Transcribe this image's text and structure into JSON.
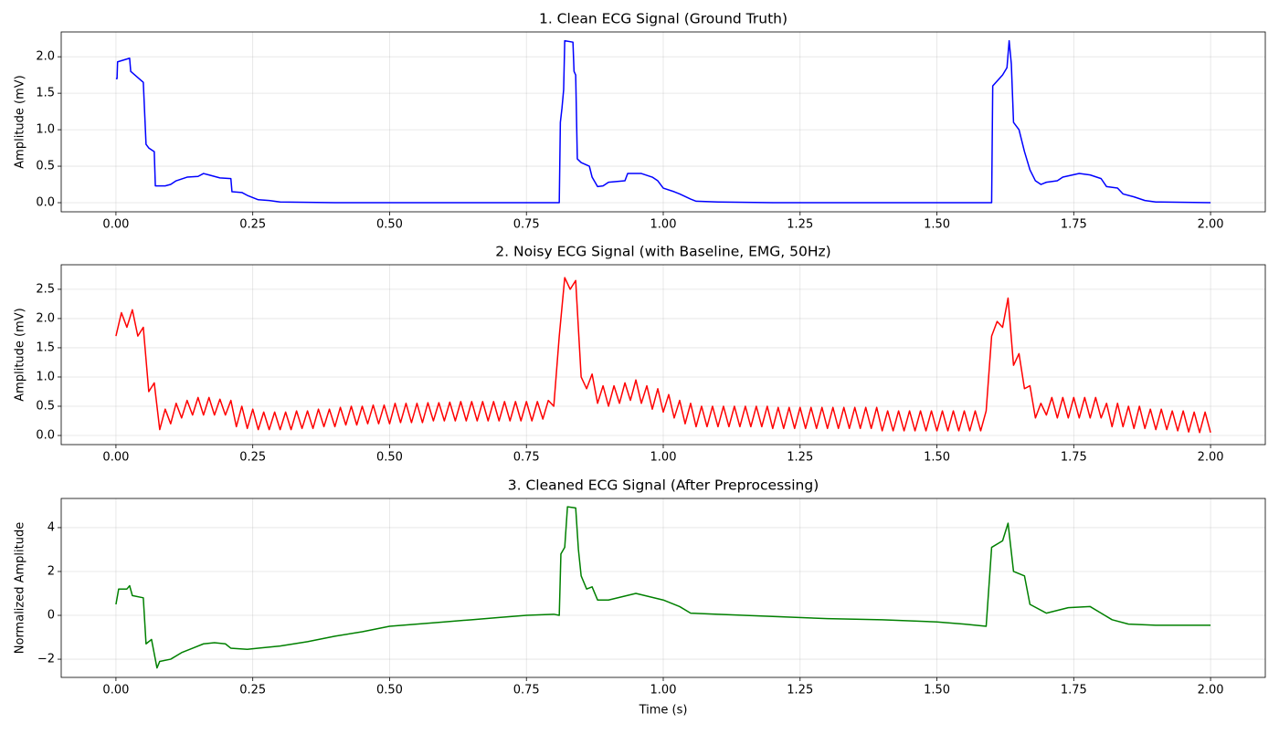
{
  "chart_data": [
    {
      "type": "line",
      "title": "1. Clean ECG Signal (Ground Truth)",
      "ylabel": "Amplitude (mV)",
      "color": "#0000ff",
      "grid": true,
      "xlim": [
        -0.1,
        2.1
      ],
      "ylim": [
        -0.125,
        2.34
      ],
      "xticks": [
        {
          "value": 0,
          "label": "0.00"
        },
        {
          "value": 0.25,
          "label": "0.25"
        },
        {
          "value": 0.5,
          "label": "0.50"
        },
        {
          "value": 0.75,
          "label": "0.75"
        },
        {
          "value": 1,
          "label": "1.00"
        },
        {
          "value": 1.25,
          "label": "1.25"
        },
        {
          "value": 1.5,
          "label": "1.50"
        },
        {
          "value": 1.75,
          "label": "1.75"
        },
        {
          "value": 2,
          "label": "2.00"
        }
      ],
      "yticks": [
        {
          "value": 0,
          "label": "0.0"
        },
        0.5,
        {
          "value": 1,
          "label": "1.0"
        },
        1.5,
        {
          "value": 2,
          "label": "2.0"
        }
      ],
      "x": [
        0,
        0.002,
        0.003,
        0.025,
        0.027,
        0.05,
        0.055,
        0.06,
        0.07,
        0.072,
        0.09,
        0.1,
        0.11,
        0.13,
        0.15,
        0.16,
        0.17,
        0.19,
        0.21,
        0.212,
        0.23,
        0.24,
        0.26,
        0.28,
        0.3,
        0.4,
        0.81,
        0.812,
        0.815,
        0.818,
        0.82,
        0.835,
        0.837,
        0.84,
        0.843,
        0.85,
        0.865,
        0.87,
        0.88,
        0.89,
        0.9,
        0.93,
        0.935,
        0.96,
        0.98,
        0.99,
        1.0,
        1.02,
        1.03,
        1.05,
        1.06,
        1.1,
        1.2,
        1.6,
        1.602,
        1.62,
        1.628,
        1.632,
        1.636,
        1.64,
        1.65,
        1.66,
        1.67,
        1.68,
        1.69,
        1.7,
        1.72,
        1.73,
        1.76,
        1.78,
        1.8,
        1.81,
        1.83,
        1.84,
        1.86,
        1.88,
        1.9,
        2.0
      ],
      "values": [
        1.7,
        1.7,
        1.93,
        1.98,
        1.8,
        1.65,
        0.8,
        0.75,
        0.7,
        0.23,
        0.23,
        0.25,
        0.3,
        0.35,
        0.36,
        0.4,
        0.38,
        0.34,
        0.33,
        0.15,
        0.14,
        0.1,
        0.04,
        0.03,
        0.01,
        0.0,
        0.0,
        1.1,
        1.3,
        1.55,
        2.22,
        2.2,
        1.8,
        1.75,
        0.6,
        0.55,
        0.5,
        0.35,
        0.22,
        0.23,
        0.28,
        0.3,
        0.4,
        0.4,
        0.35,
        0.3,
        0.2,
        0.15,
        0.12,
        0.05,
        0.02,
        0.01,
        0.0,
        0.0,
        1.6,
        1.75,
        1.85,
        2.22,
        1.9,
        1.1,
        1.0,
        0.7,
        0.45,
        0.3,
        0.25,
        0.28,
        0.3,
        0.35,
        0.4,
        0.38,
        0.33,
        0.22,
        0.2,
        0.12,
        0.08,
        0.03,
        0.01,
        0.0
      ]
    },
    {
      "type": "line",
      "title": "2. Noisy ECG Signal (with Baseline, EMG, 50Hz)",
      "ylabel": "Amplitude (mV)",
      "color": "#ff0000",
      "grid": true,
      "xlim": [
        -0.1,
        2.1
      ],
      "ylim": [
        -0.156,
        2.92
      ],
      "xticks": [
        {
          "value": 0,
          "label": "0.00"
        },
        {
          "value": 0.25,
          "label": "0.25"
        },
        {
          "value": 0.5,
          "label": "0.50"
        },
        {
          "value": 0.75,
          "label": "0.75"
        },
        {
          "value": 1,
          "label": "1.00"
        },
        {
          "value": 1.25,
          "label": "1.25"
        },
        {
          "value": 1.5,
          "label": "1.50"
        },
        {
          "value": 1.75,
          "label": "1.75"
        },
        {
          "value": 2,
          "label": "2.00"
        }
      ],
      "yticks": [
        {
          "value": 0,
          "label": "0.0"
        },
        0.5,
        {
          "value": 1,
          "label": "1.0"
        },
        1.5,
        {
          "value": 2,
          "label": "2.0"
        },
        2.5
      ],
      "x": [
        0,
        0.01,
        0.02,
        0.03,
        0.04,
        0.05,
        0.06,
        0.07,
        0.08,
        0.09,
        0.1,
        0.11,
        0.12,
        0.13,
        0.14,
        0.15,
        0.16,
        0.17,
        0.18,
        0.19,
        0.2,
        0.21,
        0.22,
        0.23,
        0.24,
        0.25,
        0.26,
        0.27,
        0.28,
        0.29,
        0.3,
        0.31,
        0.32,
        0.33,
        0.34,
        0.35,
        0.36,
        0.37,
        0.38,
        0.39,
        0.4,
        0.41,
        0.42,
        0.43,
        0.44,
        0.45,
        0.46,
        0.47,
        0.48,
        0.49,
        0.5,
        0.51,
        0.52,
        0.53,
        0.54,
        0.55,
        0.56,
        0.57,
        0.58,
        0.59,
        0.6,
        0.61,
        0.62,
        0.63,
        0.64,
        0.65,
        0.66,
        0.67,
        0.68,
        0.69,
        0.7,
        0.71,
        0.72,
        0.73,
        0.74,
        0.75,
        0.76,
        0.77,
        0.78,
        0.79,
        0.8,
        0.81,
        0.82,
        0.83,
        0.84,
        0.85,
        0.86,
        0.87,
        0.88,
        0.89,
        0.9,
        0.91,
        0.92,
        0.93,
        0.94,
        0.95,
        0.96,
        0.97,
        0.98,
        0.99,
        1.0,
        1.01,
        1.02,
        1.03,
        1.04,
        1.05,
        1.06,
        1.07,
        1.08,
        1.09,
        1.1,
        1.11,
        1.12,
        1.13,
        1.14,
        1.15,
        1.16,
        1.17,
        1.18,
        1.19,
        1.2,
        1.21,
        1.22,
        1.23,
        1.24,
        1.25,
        1.26,
        1.27,
        1.28,
        1.29,
        1.3,
        1.31,
        1.32,
        1.33,
        1.34,
        1.35,
        1.36,
        1.37,
        1.38,
        1.39,
        1.4,
        1.41,
        1.42,
        1.43,
        1.44,
        1.45,
        1.46,
        1.47,
        1.48,
        1.49,
        1.5,
        1.51,
        1.52,
        1.53,
        1.54,
        1.55,
        1.56,
        1.57,
        1.58,
        1.59,
        1.6,
        1.61,
        1.62,
        1.63,
        1.64,
        1.65,
        1.66,
        1.67,
        1.68,
        1.69,
        1.7,
        1.71,
        1.72,
        1.73,
        1.74,
        1.75,
        1.76,
        1.77,
        1.78,
        1.79,
        1.8,
        1.81,
        1.82,
        1.83,
        1.84,
        1.85,
        1.86,
        1.87,
        1.88,
        1.89,
        1.9,
        1.91,
        1.92,
        1.93,
        1.94,
        1.95,
        1.96,
        1.97,
        1.98,
        1.99,
        2.0
      ],
      "values": [
        1.7,
        2.1,
        1.85,
        2.15,
        1.7,
        1.85,
        0.75,
        0.9,
        0.1,
        0.45,
        0.2,
        0.55,
        0.3,
        0.6,
        0.35,
        0.65,
        0.35,
        0.65,
        0.35,
        0.62,
        0.35,
        0.6,
        0.15,
        0.5,
        0.12,
        0.45,
        0.1,
        0.4,
        0.1,
        0.4,
        0.1,
        0.4,
        0.1,
        0.42,
        0.12,
        0.42,
        0.12,
        0.45,
        0.15,
        0.45,
        0.15,
        0.48,
        0.18,
        0.5,
        0.18,
        0.5,
        0.2,
        0.52,
        0.2,
        0.52,
        0.2,
        0.55,
        0.22,
        0.55,
        0.22,
        0.55,
        0.22,
        0.56,
        0.25,
        0.56,
        0.25,
        0.57,
        0.25,
        0.58,
        0.25,
        0.58,
        0.25,
        0.58,
        0.25,
        0.58,
        0.25,
        0.58,
        0.25,
        0.58,
        0.25,
        0.58,
        0.25,
        0.58,
        0.28,
        0.6,
        0.5,
        1.7,
        2.7,
        2.5,
        2.65,
        1.0,
        0.8,
        1.05,
        0.55,
        0.85,
        0.5,
        0.85,
        0.55,
        0.9,
        0.6,
        0.95,
        0.55,
        0.85,
        0.45,
        0.8,
        0.4,
        0.7,
        0.3,
        0.6,
        0.2,
        0.55,
        0.15,
        0.5,
        0.15,
        0.5,
        0.15,
        0.5,
        0.15,
        0.5,
        0.15,
        0.5,
        0.15,
        0.5,
        0.15,
        0.5,
        0.12,
        0.48,
        0.12,
        0.48,
        0.12,
        0.48,
        0.12,
        0.48,
        0.12,
        0.48,
        0.12,
        0.48,
        0.12,
        0.48,
        0.12,
        0.48,
        0.12,
        0.48,
        0.12,
        0.48,
        0.08,
        0.42,
        0.08,
        0.42,
        0.08,
        0.42,
        0.08,
        0.42,
        0.08,
        0.42,
        0.08,
        0.42,
        0.08,
        0.42,
        0.08,
        0.42,
        0.08,
        0.42,
        0.08,
        0.42,
        1.7,
        1.95,
        1.85,
        2.35,
        1.2,
        1.4,
        0.8,
        0.85,
        0.3,
        0.55,
        0.35,
        0.65,
        0.3,
        0.65,
        0.3,
        0.65,
        0.3,
        0.65,
        0.3,
        0.65,
        0.3,
        0.55,
        0.15,
        0.55,
        0.15,
        0.5,
        0.12,
        0.5,
        0.12,
        0.45,
        0.1,
        0.45,
        0.1,
        0.42,
        0.08,
        0.42,
        0.06,
        0.4,
        0.05,
        0.4,
        0.05
      ]
    },
    {
      "type": "line",
      "title": "3. Cleaned ECG Signal (After Preprocessing)",
      "ylabel": "Normalized Amplitude",
      "xlabel": "Time (s)",
      "color": "#008000",
      "grid": true,
      "xlim": [
        -0.1,
        2.1
      ],
      "ylim": [
        -2.83,
        5.33
      ],
      "xticks": [
        {
          "value": 0,
          "label": "0.00"
        },
        {
          "value": 0.25,
          "label": "0.25"
        },
        {
          "value": 0.5,
          "label": "0.50"
        },
        {
          "value": 0.75,
          "label": "0.75"
        },
        {
          "value": 1,
          "label": "1.00"
        },
        {
          "value": 1.25,
          "label": "1.25"
        },
        {
          "value": 1.5,
          "label": "1.50"
        },
        {
          "value": 1.75,
          "label": "1.75"
        },
        {
          "value": 2,
          "label": "2.00"
        }
      ],
      "yticks": [
        {
          "value": -2,
          "label": "−2"
        },
        0,
        2,
        4
      ],
      "x": [
        0,
        0.005,
        0.02,
        0.025,
        0.03,
        0.05,
        0.055,
        0.065,
        0.075,
        0.08,
        0.1,
        0.12,
        0.14,
        0.16,
        0.18,
        0.2,
        0.21,
        0.24,
        0.26,
        0.3,
        0.35,
        0.4,
        0.45,
        0.5,
        0.55,
        0.6,
        0.65,
        0.7,
        0.75,
        0.8,
        0.81,
        0.813,
        0.82,
        0.825,
        0.84,
        0.845,
        0.85,
        0.86,
        0.87,
        0.88,
        0.9,
        0.95,
        1.0,
        1.03,
        1.05,
        1.1,
        1.2,
        1.3,
        1.4,
        1.5,
        1.55,
        1.59,
        1.6,
        1.62,
        1.63,
        1.64,
        1.66,
        1.67,
        1.7,
        1.74,
        1.78,
        1.8,
        1.82,
        1.85,
        1.9,
        2.0
      ],
      "values": [
        0.5,
        1.2,
        1.2,
        1.35,
        0.9,
        0.8,
        -1.3,
        -1.1,
        -2.4,
        -2.1,
        -2.0,
        -1.7,
        -1.5,
        -1.3,
        -1.25,
        -1.3,
        -1.5,
        -1.55,
        -1.5,
        -1.4,
        -1.2,
        -0.95,
        -0.75,
        -0.5,
        -0.4,
        -0.3,
        -0.2,
        -0.1,
        0.0,
        0.05,
        0.0,
        2.8,
        3.1,
        4.95,
        4.9,
        3.0,
        1.8,
        1.2,
        1.3,
        0.7,
        0.7,
        1.0,
        0.7,
        0.4,
        0.1,
        0.05,
        -0.05,
        -0.15,
        -0.2,
        -0.3,
        -0.4,
        -0.5,
        3.1,
        3.4,
        4.2,
        2.0,
        1.8,
        0.5,
        0.1,
        0.35,
        0.4,
        0.1,
        -0.2,
        -0.4,
        -0.45,
        -0.45
      ]
    }
  ]
}
